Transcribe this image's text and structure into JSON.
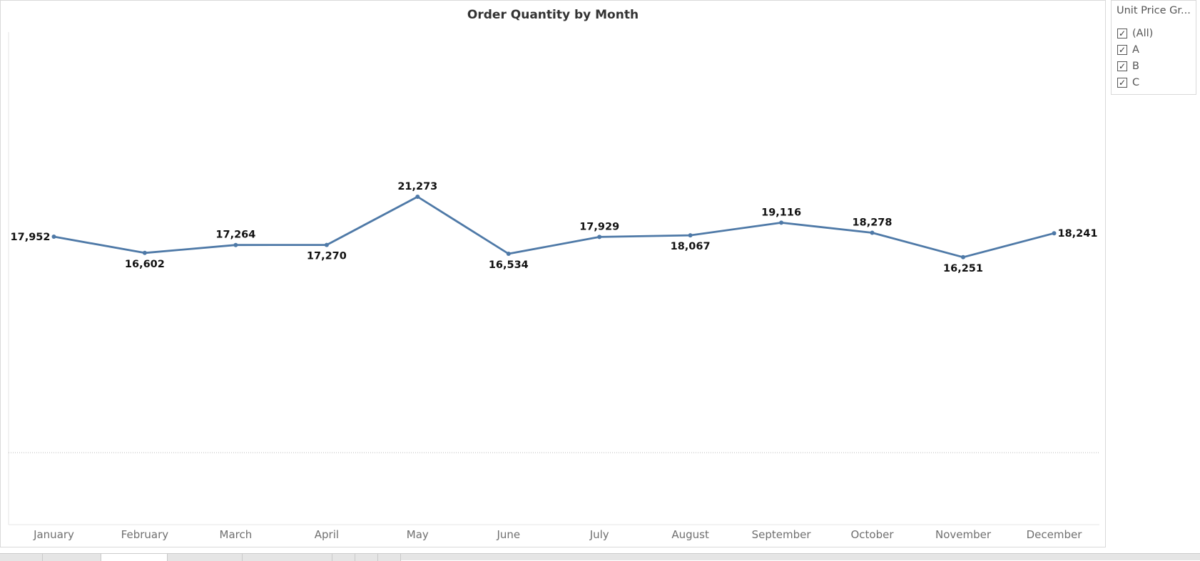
{
  "chart_data": {
    "type": "line",
    "title": "Order Quantity by Month",
    "xlabel": "",
    "ylabel": "",
    "categories": [
      "January",
      "February",
      "March",
      "April",
      "May",
      "June",
      "July",
      "August",
      "September",
      "October",
      "November",
      "December"
    ],
    "series": [
      {
        "values": [
          17952,
          16602,
          17264,
          17270,
          21273,
          16534,
          17929,
          18067,
          19116,
          18278,
          16251,
          18241
        ]
      }
    ],
    "data_labels": [
      "17,952",
      "16,602",
      "17,264",
      "17,270",
      "21,273",
      "16,534",
      "17,929",
      "18,067",
      "19,116",
      "18,278",
      "16,251",
      "18,241"
    ],
    "grid": false,
    "line_color": "#4e79a7"
  },
  "filter": {
    "title": "Unit Price Gr...",
    "items": [
      {
        "label": "(All)",
        "checked": true
      },
      {
        "label": "A",
        "checked": true
      },
      {
        "label": "B",
        "checked": true
      },
      {
        "label": "C",
        "checked": true
      }
    ],
    "check_glyph": "✓"
  },
  "sheet_tabs": [
    {
      "label": "",
      "active": false
    },
    {
      "label": "",
      "active": false
    },
    {
      "label": "",
      "active": true
    },
    {
      "label": "",
      "active": false
    },
    {
      "label": "",
      "active": false
    },
    {
      "label": "",
      "active": false
    },
    {
      "label": "",
      "active": false
    },
    {
      "label": "",
      "active": false
    }
  ]
}
